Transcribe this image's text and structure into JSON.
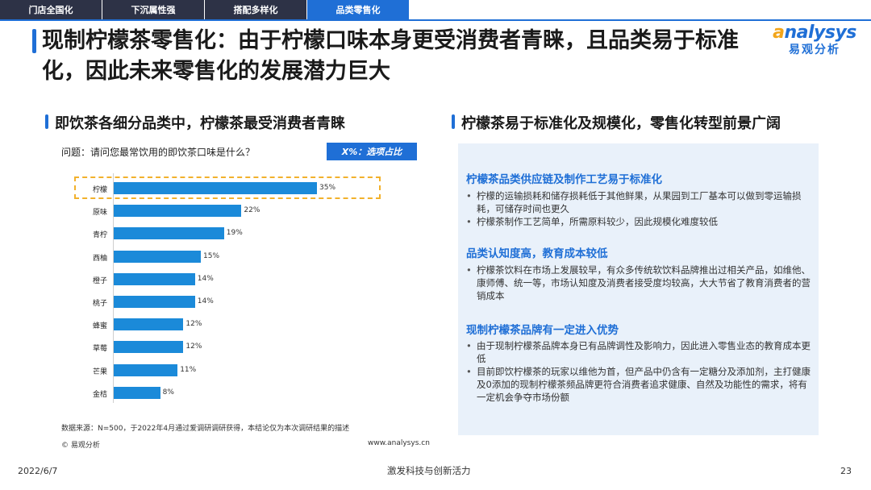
{
  "nav": {
    "tabs": [
      {
        "label": "门店全国化"
      },
      {
        "label": "下沉属性强"
      },
      {
        "label": "搭配多样化"
      },
      {
        "label": "品类零售化"
      }
    ],
    "active_index": 3
  },
  "title": "现制柠檬茶零售化：由于柠檬口味本身更受消费者青睐，且品类易于标准化，因此未来零售化的发展潜力巨大",
  "logo": {
    "en": "nalysys",
    "en_prefix": "a",
    "cn": "易观分析"
  },
  "left_section": {
    "heading": "即饮茶各细分品类中，柠檬茶最受消费者青睐",
    "question": "问题：请问您最常饮用的即饮茶口味是什么？",
    "badge": "X%：选项占比",
    "source": "数据来源：N=500，于2022年4月通过爱调研调研获得，本结论仅为本次调研结果的描述",
    "copyright": "© 易观分析",
    "url": "www.analysys.cn"
  },
  "chart_data": {
    "type": "bar",
    "orientation": "horizontal",
    "categories": [
      "柠檬",
      "原味",
      "青柠",
      "西柚",
      "橙子",
      "桃子",
      "蜂蜜",
      "草莓",
      "芒果",
      "金桔"
    ],
    "values": [
      35,
      22,
      19,
      15,
      14,
      14,
      12,
      12,
      11,
      8
    ],
    "value_labels": [
      "35%",
      "22%",
      "19%",
      "15%",
      "14%",
      "14%",
      "12%",
      "12%",
      "11%",
      "8%"
    ],
    "unit": "%",
    "highlight": "柠檬",
    "color": "#1b8ad9",
    "highlight_color": "#f2b12c"
  },
  "right_section": {
    "heading": "柠檬茶易于标准化及规模化，零售化转型前景广阔",
    "blocks": [
      {
        "title": "柠檬茶品类供应链及制作工艺易于标准化",
        "bullets": [
          "柠檬的运输损耗和储存损耗低于其他鲜果，从果园到工厂基本可以做到零运输损耗，可储存时间也更久",
          "柠檬茶制作工艺简单，所需原料较少，因此规模化难度较低"
        ]
      },
      {
        "title": "品类认知度高，教育成本较低",
        "bullets": [
          "柠檬茶饮料在市场上发展较早，有众多传统软饮料品牌推出过相关产品，如维他、康师傅、统一等，市场认知度及消费者接受度均较高，大大节省了教育消费者的营销成本"
        ]
      },
      {
        "title": "现制柠檬茶品牌有一定进入优势",
        "bullets": [
          "由于现制柠檬茶品牌本身已有品牌调性及影响力，因此进入零售业态的教育成本更低",
          "目前即饮柠檬茶的玩家以维他为首，但产品中仍含有一定糖分及添加剂，主打健康及0添加的现制柠檬茶频品牌更符合消费者追求健康、自然及功能性的需求，将有一定机会争夺市场份额"
        ]
      }
    ]
  },
  "footer": {
    "date": "2022/6/7",
    "slogan": "激发科技与创新活力",
    "page": "23"
  }
}
